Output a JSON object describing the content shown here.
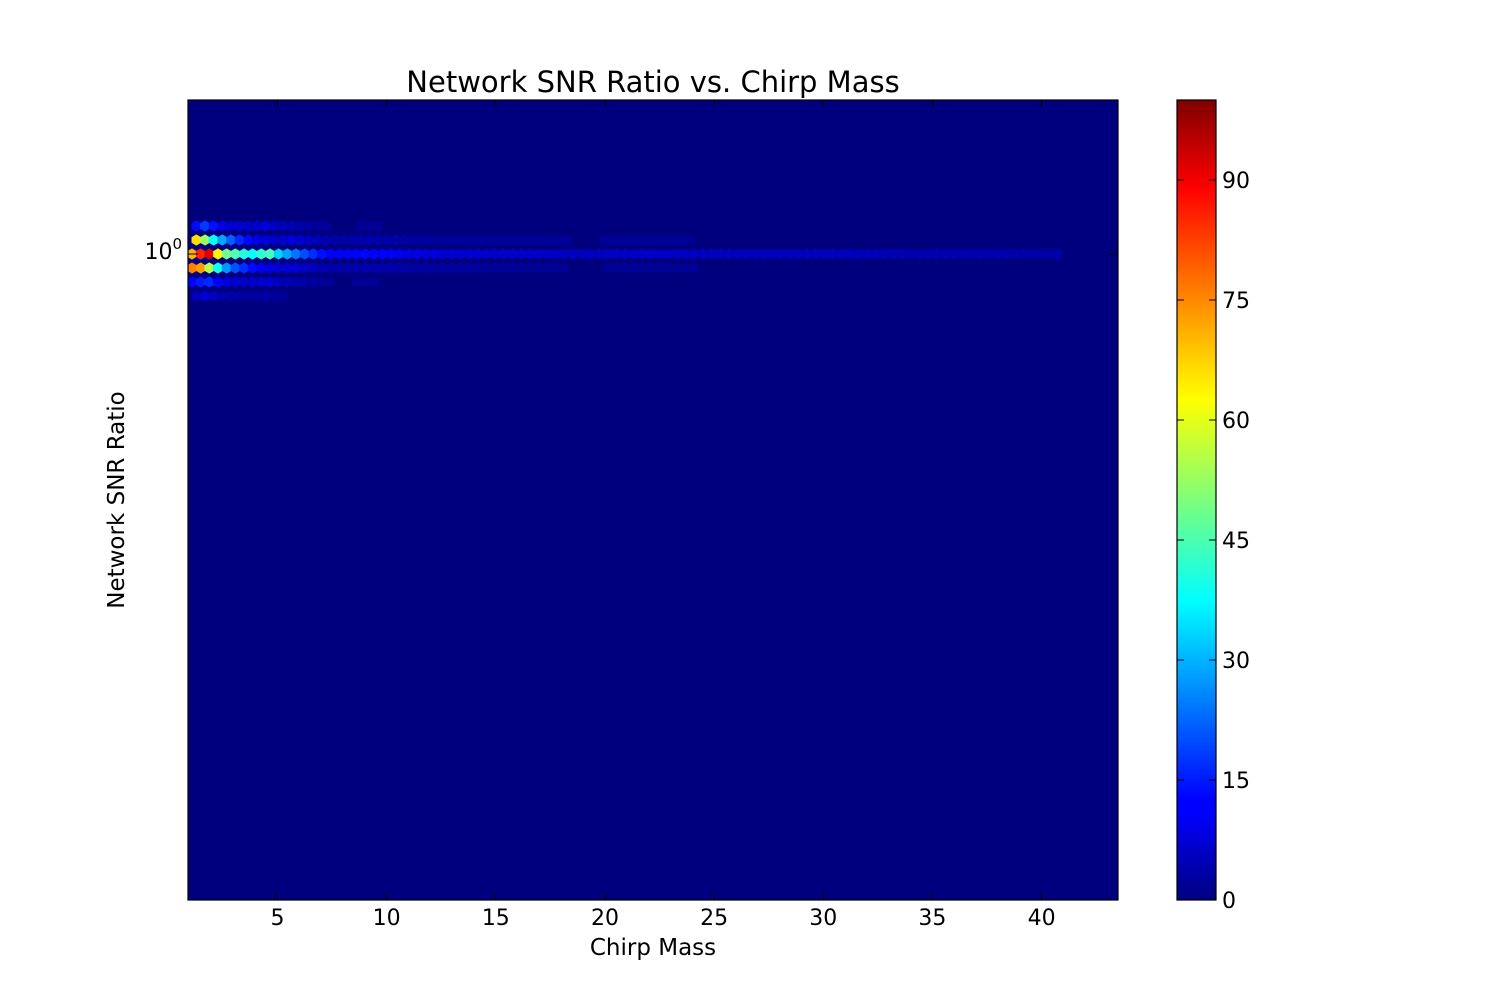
{
  "chart_data": {
    "type": "heatmap",
    "plot_kind": "hexbin",
    "title": "Network SNR Ratio vs. Chirp Mass",
    "xlabel": "Chirp Mass",
    "ylabel": "Network SNR Ratio",
    "xlim": [
      0.9,
      43.5
    ],
    "x_ticks": [
      5,
      10,
      15,
      20,
      25,
      30,
      35,
      40
    ],
    "y_scale": "log",
    "y_ticks": [
      {
        "value": 1,
        "base": "10",
        "exponent": "0"
      }
    ],
    "colormap": "jet",
    "background_color": "#00007f",
    "colorbar": {
      "min": 0,
      "max": 100,
      "ticks": [
        "0",
        "15",
        "30",
        "45",
        "60",
        "75",
        "90"
      ]
    },
    "grid": false,
    "legend": "none",
    "ridge": {
      "y_center": 1.0,
      "counts_at_center": [
        [
          1.2,
          70
        ],
        [
          1.5,
          85
        ],
        [
          1.7,
          103
        ],
        [
          2.0,
          82
        ],
        [
          2.4,
          55
        ],
        [
          2.7,
          48
        ],
        [
          3.1,
          45
        ],
        [
          3.4,
          42
        ],
        [
          3.8,
          38
        ],
        [
          4.2,
          40
        ],
        [
          4.5,
          50
        ],
        [
          4.9,
          35
        ],
        [
          5.3,
          30
        ],
        [
          5.6,
          27
        ],
        [
          6.0,
          22
        ],
        [
          6.5,
          18
        ],
        [
          7.0,
          14
        ],
        [
          7.5,
          12
        ],
        [
          8.0,
          11
        ],
        [
          9.0,
          13
        ],
        [
          10.0,
          12
        ],
        [
          11.0,
          10
        ],
        [
          12.0,
          9
        ],
        [
          13.0,
          8
        ],
        [
          14.0,
          8
        ],
        [
          15.0,
          7
        ],
        [
          17.0,
          7
        ],
        [
          19.0,
          6
        ],
        [
          22.0,
          7
        ],
        [
          25.0,
          6
        ],
        [
          28.0,
          6
        ],
        [
          31.0,
          6
        ],
        [
          34.0,
          5
        ],
        [
          37.0,
          5
        ],
        [
          40.0,
          4
        ]
      ],
      "counts_below": [
        [
          1.2,
          75
        ],
        [
          1.5,
          72
        ],
        [
          2.0,
          50
        ],
        [
          2.5,
          30
        ],
        [
          3.1,
          20
        ],
        [
          4.0,
          12
        ],
        [
          5.0,
          8
        ]
      ],
      "counts_above": [
        [
          1.2,
          68
        ],
        [
          1.5,
          60
        ],
        [
          2.0,
          40
        ],
        [
          2.5,
          28
        ],
        [
          3.1,
          18
        ],
        [
          4.0,
          10
        ],
        [
          5.0,
          7
        ]
      ]
    }
  }
}
